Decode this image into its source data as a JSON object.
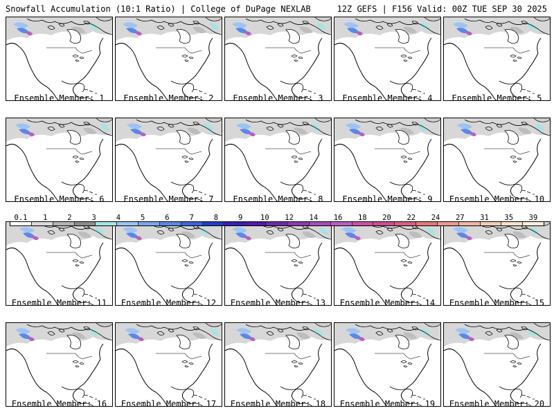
{
  "header": {
    "left_title": "Snowfall Accumulation (10:1 Ratio) | College of DuPage NEXLAB",
    "right_title": "12Z GEFS | F156 Valid: 00Z TUE SEP 30 2025"
  },
  "panels": [
    {
      "label": "Ensemble Member: 1"
    },
    {
      "label": "Ensemble Member: 2"
    },
    {
      "label": "Ensemble Member: 3"
    },
    {
      "label": "Ensemble Member: 4"
    },
    {
      "label": "Ensemble Member: 5"
    },
    {
      "label": "Ensemble Member: 6"
    },
    {
      "label": "Ensemble Member: 7"
    },
    {
      "label": "Ensemble Member: 8"
    },
    {
      "label": "Ensemble Member: 9"
    },
    {
      "label": "Ensemble Member: 10"
    },
    {
      "label": "Ensemble Member: 11"
    },
    {
      "label": "Ensemble Member: 12"
    },
    {
      "label": "Ensemble Member: 13"
    },
    {
      "label": "Ensemble Member: 14"
    },
    {
      "label": "Ensemble Member: 15"
    },
    {
      "label": "Ensemble Member: 16"
    },
    {
      "label": "Ensemble Member: 17"
    },
    {
      "label": "Ensemble Member: 18"
    },
    {
      "label": "Ensemble Member: 19"
    },
    {
      "label": "Ensemble Member: 20"
    }
  ],
  "legend": {
    "labels": [
      "0.1",
      "1",
      "2",
      "3",
      "4",
      "5",
      "6",
      "7",
      "8",
      "9",
      "10",
      "12",
      "14",
      "16",
      "18",
      "20",
      "22",
      "24",
      "27",
      "31",
      "35",
      "39"
    ],
    "colors": [
      "#ffffff",
      "#d9d9d9",
      "#b3b3b3",
      "#8c8c8c",
      "#a6e3e3",
      "#9dc3f5",
      "#7aa7ef",
      "#5c87e6",
      "#3d64d8",
      "#1f3ecb",
      "#3322b0",
      "#5418a8",
      "#6e2aa8",
      "#8a3cb0",
      "#a24fb8",
      "#b95fbf",
      "#c94fa5",
      "#d04d90",
      "#d85f80",
      "#e07a7a",
      "#e89a8c",
      "#efb7a3",
      "#f3ccb6",
      "#f7dfc9",
      "#fbeee0"
    ]
  }
}
